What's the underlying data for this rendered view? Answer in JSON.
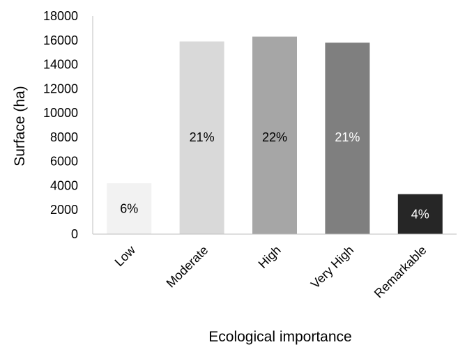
{
  "chart_data": {
    "type": "bar",
    "title": "",
    "xlabel": "Ecological importance",
    "ylabel": "Surface (ha)",
    "categories": [
      "Low",
      "Moderate",
      "High",
      "Very High",
      "Remarkable"
    ],
    "values": [
      4200,
      15900,
      16300,
      15800,
      3300
    ],
    "data_labels": [
      "6%",
      "21%",
      "22%",
      "21%",
      "4%"
    ],
    "bar_colors": [
      "#f2f2f2",
      "#d9d9d9",
      "#a6a6a6",
      "#7f7f7f",
      "#262626"
    ],
    "data_label_colors": [
      "#000000",
      "#000000",
      "#000000",
      "#ffffff",
      "#ffffff"
    ],
    "ylim": [
      0,
      18000
    ],
    "y_ticks": [
      "0",
      "2000",
      "4000",
      "6000",
      "8000",
      "10000",
      "12000",
      "14000",
      "16000",
      "18000"
    ],
    "grid": false,
    "legend": "none"
  }
}
